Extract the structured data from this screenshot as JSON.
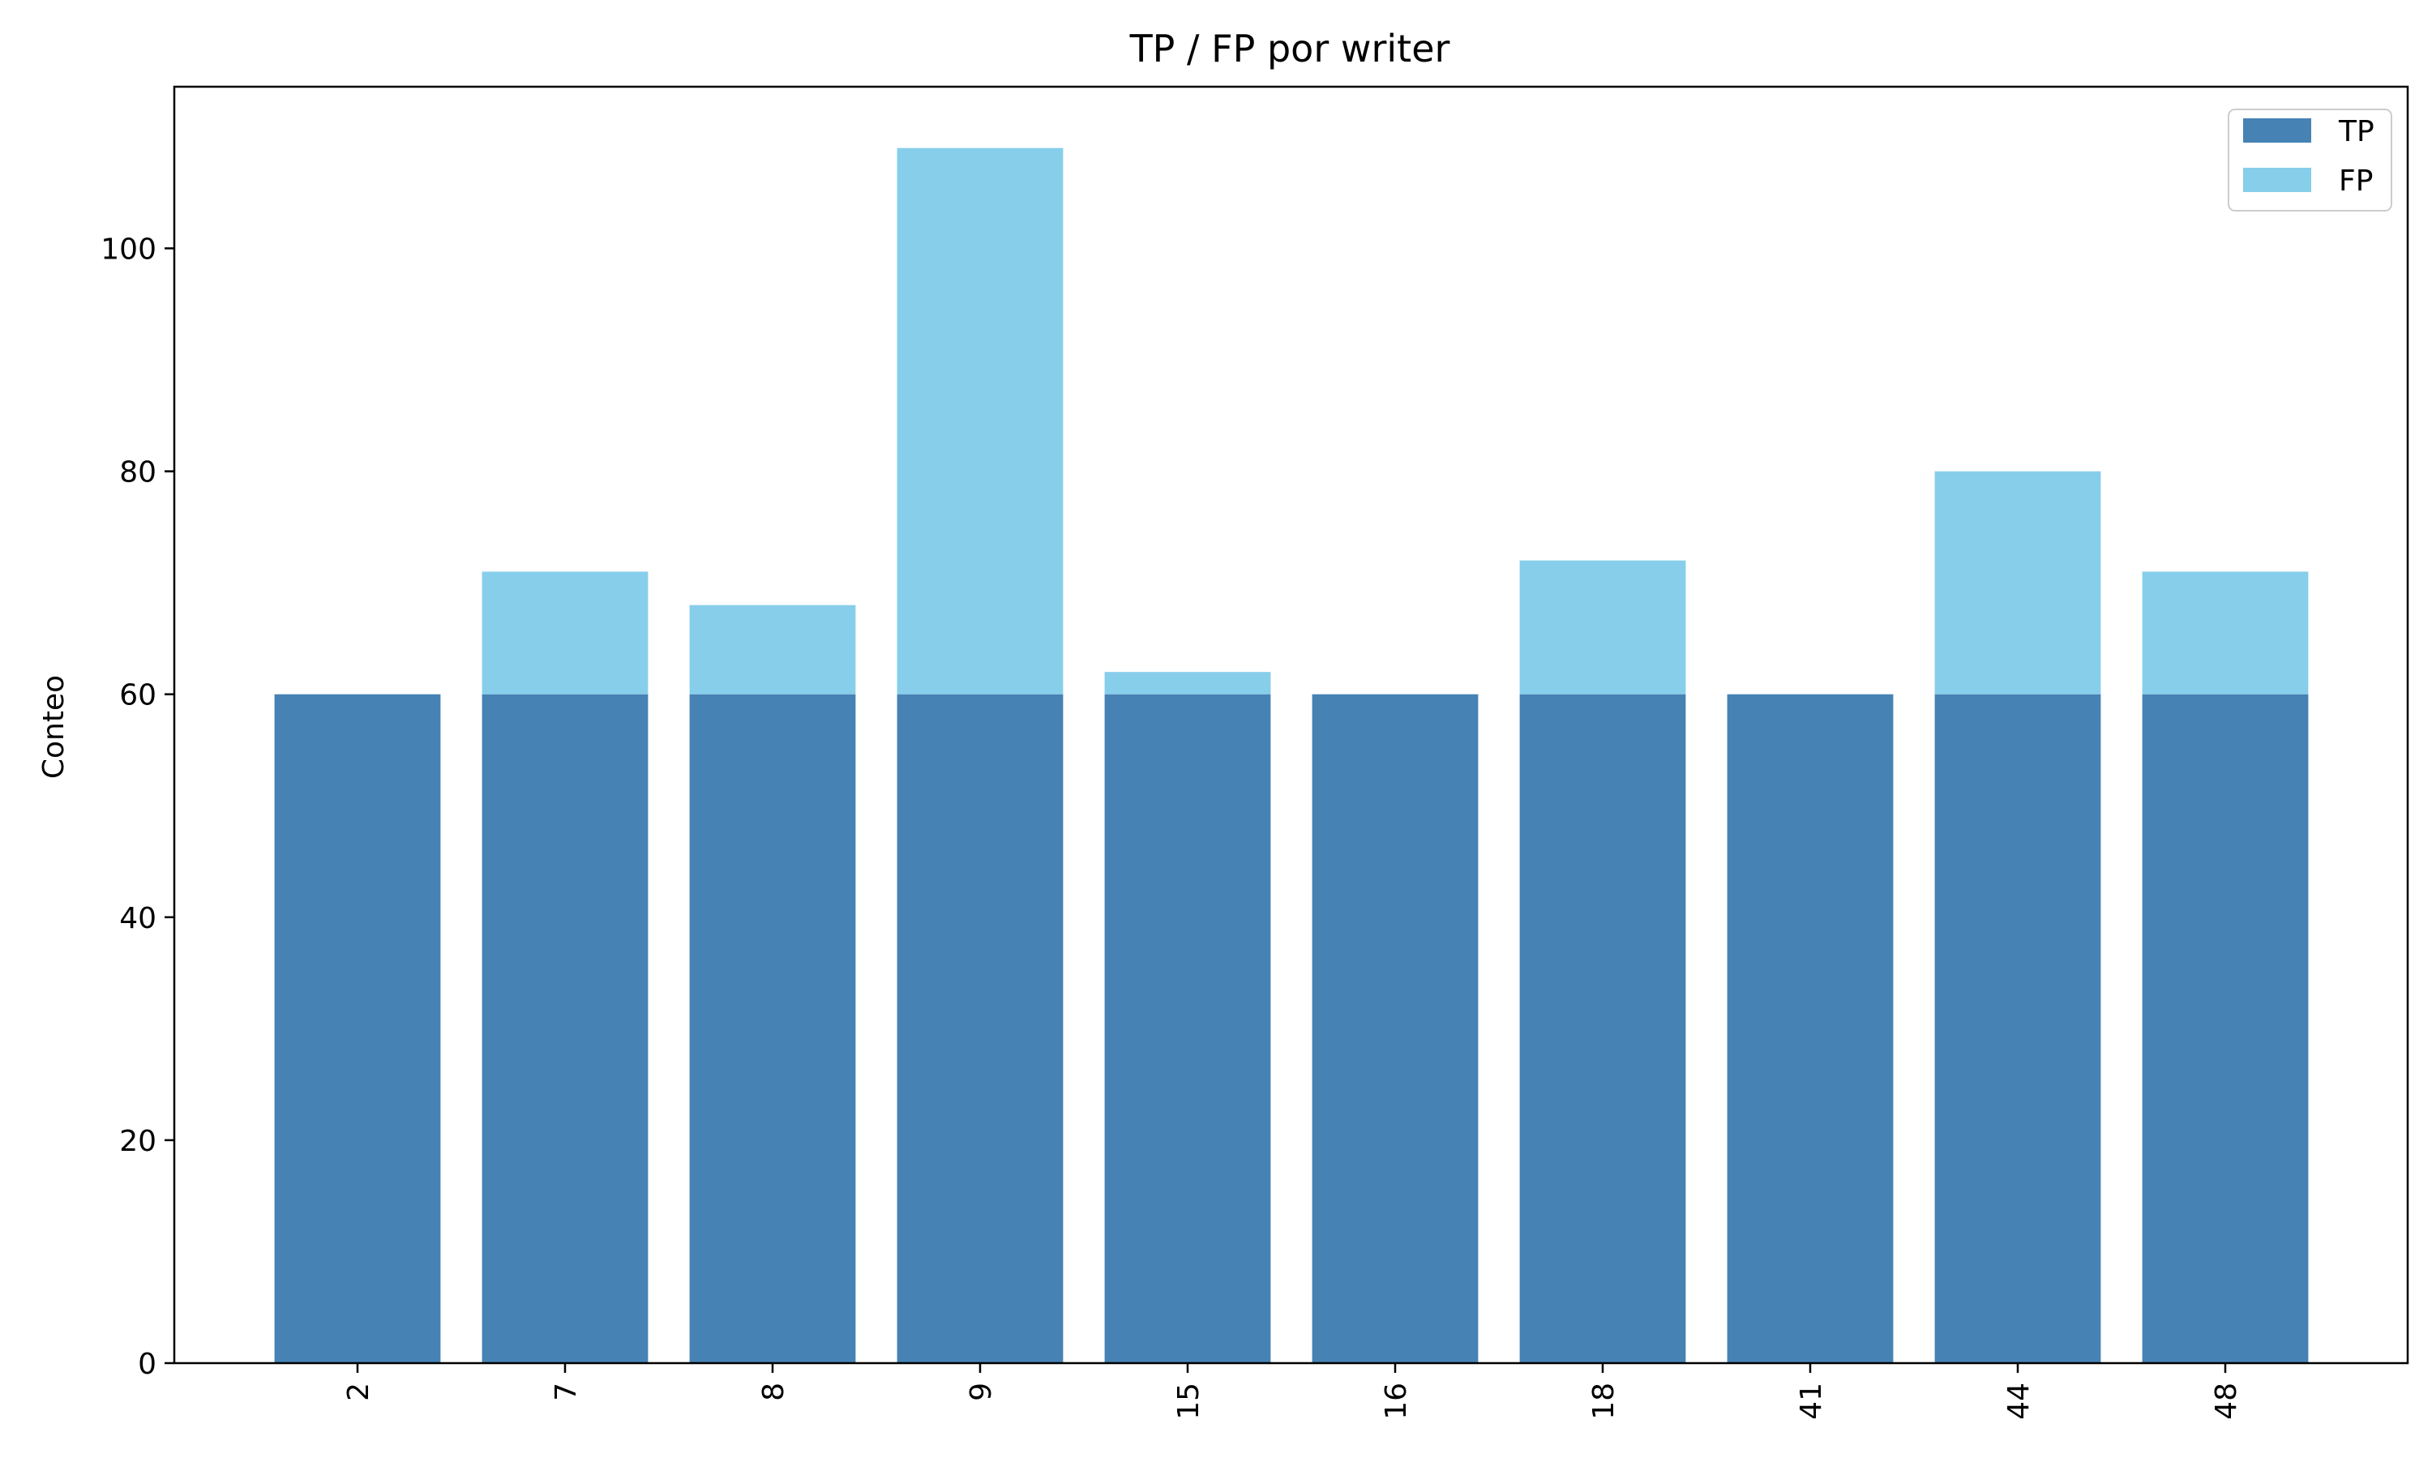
{
  "chart_data": {
    "type": "bar",
    "stacked": true,
    "title": "TP / FP por writer",
    "xlabel": "",
    "ylabel": "Conteo",
    "categories": [
      "2",
      "7",
      "8",
      "9",
      "15",
      "16",
      "18",
      "41",
      "44",
      "48"
    ],
    "series": [
      {
        "name": "TP",
        "color": "#4682b4",
        "values": [
          60,
          60,
          60,
          60,
          60,
          60,
          60,
          60,
          60,
          60
        ]
      },
      {
        "name": "FP",
        "color": "#87ceeb",
        "values": [
          0,
          11,
          8,
          49,
          2,
          0,
          12,
          0,
          20,
          11
        ]
      }
    ],
    "ylim": [
      0,
      114.5
    ],
    "yticks": [
      0,
      20,
      40,
      60,
      80,
      100
    ],
    "grid": false,
    "legend": "top-right"
  }
}
